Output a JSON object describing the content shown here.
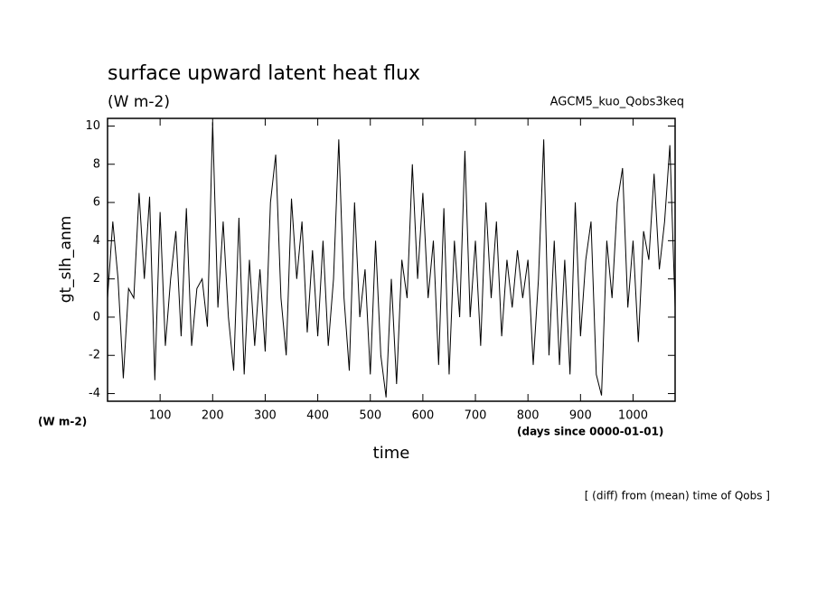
{
  "chart_data": {
    "type": "line",
    "title": "surface upward latent heat flux",
    "subtitle": "(W m-2)",
    "experiment": "AGCM5_kuo_Qobs3keq",
    "y_label": "gt_slh_anm",
    "y_units": "(W m-2)",
    "x_label": "time",
    "x_units": "(days since 0000-01-01)",
    "footnote": "[ (diff) from (mean) time of Qobs ]",
    "xlim": [
      0,
      1080
    ],
    "ylim": [
      -4.4,
      10.4
    ],
    "xticks": [
      100,
      200,
      300,
      400,
      500,
      600,
      700,
      800,
      900,
      1000
    ],
    "yticks": [
      -4,
      -2,
      0,
      2,
      4,
      6,
      8,
      10
    ],
    "color": "#000000",
    "x": [
      0,
      10,
      20,
      30,
      40,
      50,
      60,
      70,
      80,
      90,
      100,
      110,
      120,
      130,
      140,
      150,
      160,
      170,
      180,
      190,
      200,
      210,
      220,
      230,
      240,
      250,
      260,
      270,
      280,
      290,
      300,
      310,
      320,
      330,
      340,
      350,
      360,
      370,
      380,
      390,
      400,
      410,
      420,
      430,
      440,
      450,
      460,
      470,
      480,
      490,
      500,
      510,
      520,
      530,
      540,
      550,
      560,
      570,
      580,
      590,
      600,
      610,
      620,
      630,
      640,
      650,
      660,
      670,
      680,
      690,
      700,
      710,
      720,
      730,
      740,
      750,
      760,
      770,
      780,
      790,
      800,
      810,
      820,
      830,
      840,
      850,
      860,
      870,
      880,
      890,
      900,
      910,
      920,
      930,
      940,
      950,
      960,
      970,
      980,
      990,
      1000,
      1010,
      1020,
      1030,
      1040,
      1050,
      1060,
      1070,
      1080
    ],
    "values": [
      1,
      5,
      2,
      -3.2,
      1.5,
      1,
      6.5,
      2,
      6.3,
      -3.3,
      5.5,
      -1.5,
      2,
      4.5,
      -1,
      5.7,
      -1.5,
      1.5,
      2,
      -0.5,
      10.2,
      0.5,
      5,
      0,
      -2.8,
      5.2,
      -3,
      3,
      -1.5,
      2.5,
      -1.8,
      6,
      8.5,
      1,
      -2,
      6.2,
      2,
      5,
      -0.8,
      3.5,
      -1,
      4,
      -1.5,
      2,
      9.3,
      1,
      -2.8,
      6,
      0,
      2.5,
      -3,
      4,
      -2,
      -4.2,
      2,
      -3.5,
      3,
      1,
      8,
      2,
      6.5,
      1,
      4,
      -2.5,
      5.7,
      -3,
      4,
      0,
      8.7,
      0,
      4,
      -1.5,
      6,
      1,
      5,
      -1,
      3,
      0.5,
      3.5,
      1,
      3,
      -2.5,
      2,
      9.3,
      -2,
      4,
      -2.5,
      3,
      -3,
      6,
      -1,
      3,
      5,
      -3,
      -4.1,
      4,
      1,
      6,
      7.8,
      0.5,
      4,
      -1.3,
      4.5,
      3,
      7.5,
      2.5,
      5,
      9,
      0.5
    ]
  }
}
